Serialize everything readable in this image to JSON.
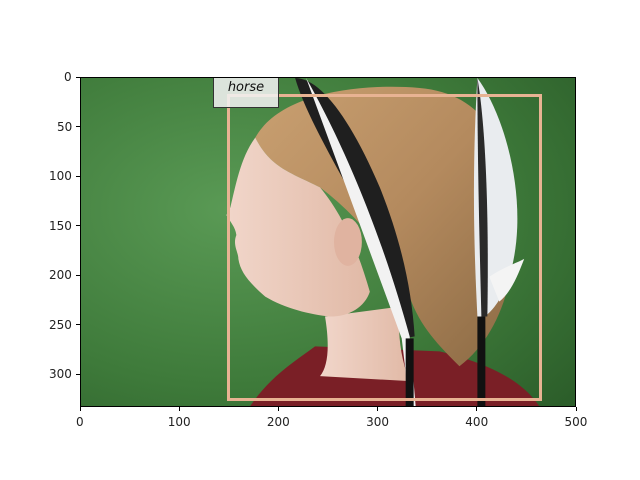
{
  "image": {
    "description_colors": {
      "background": "#3e7a3a",
      "hair": "#b48a5e",
      "skin": "#eac8b8",
      "shirt": "#7a1f26",
      "feather_dark": "#222222",
      "feather_light": "#e9ecef"
    }
  },
  "annotation": {
    "label": "horse",
    "box_color": "#e8b393",
    "box_data": {
      "x_min": 147,
      "y_min": 16,
      "x_max": 465,
      "y_max": 326
    }
  },
  "axes": {
    "x_range": [
      0,
      500
    ],
    "y_range": [
      0,
      333
    ],
    "x_ticks": [
      0,
      100,
      200,
      300,
      400,
      500
    ],
    "y_ticks": [
      0,
      50,
      100,
      150,
      200,
      250,
      300
    ]
  }
}
